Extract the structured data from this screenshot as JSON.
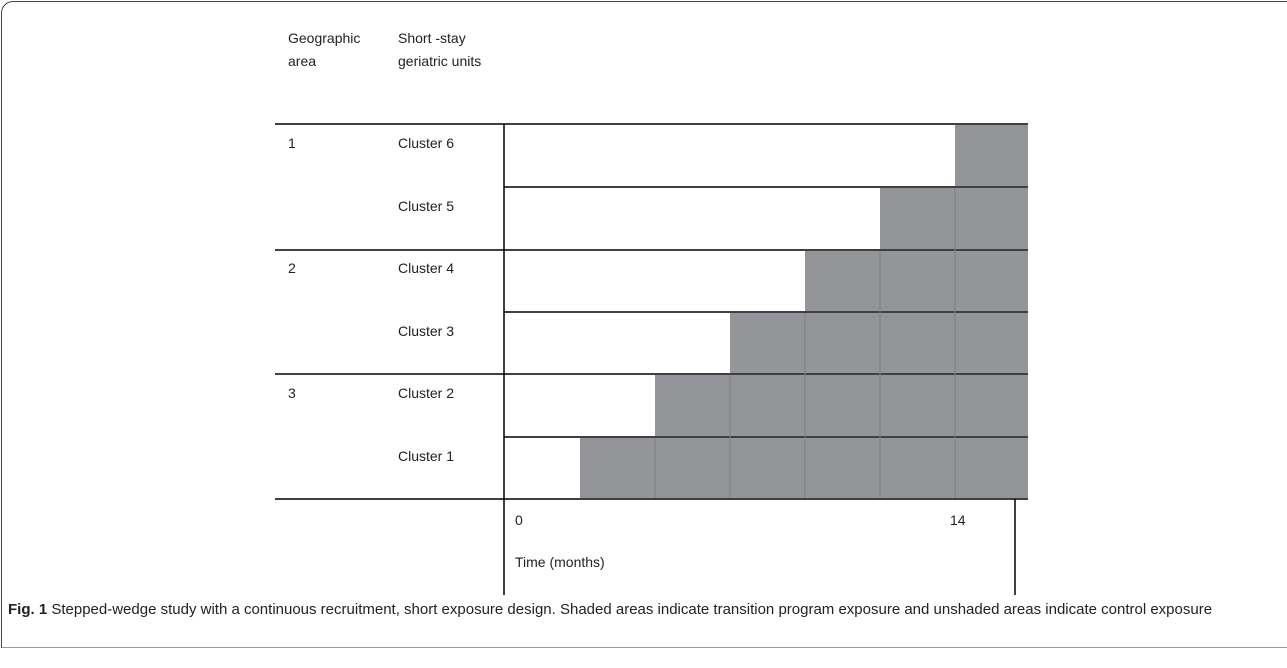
{
  "figure": {
    "columns": [
      "Geographic area",
      "Short -stay geriatric units"
    ],
    "groups": [
      {
        "area": "1",
        "clusters": [
          "Cluster 6",
          "Cluster 5"
        ]
      },
      {
        "area": "2",
        "clusters": [
          "Cluster 4",
          "Cluster 3"
        ]
      },
      {
        "area": "3",
        "clusters": [
          "Cluster 2",
          "Cluster 1"
        ]
      }
    ],
    "axis": {
      "start": 0,
      "end": 14,
      "label": "Time (months)"
    },
    "caption": {
      "label": "Fig. 1",
      "text": "Stepped-wedge study with a continuous recruitment, short exposure design. Shaded areas indicate transition program exposure and unshaded areas indicate control exposure"
    }
  }
}
